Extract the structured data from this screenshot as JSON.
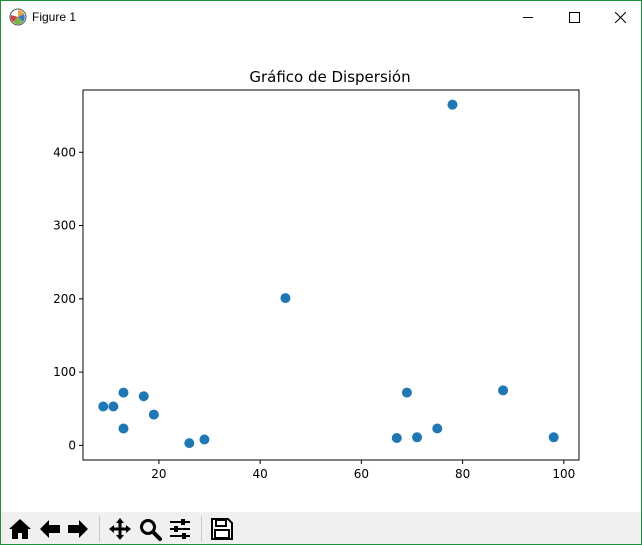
{
  "window": {
    "title": "Figure 1",
    "controls": [
      "minimize",
      "maximize",
      "close"
    ]
  },
  "toolbar": {
    "buttons": [
      {
        "name": "home-icon",
        "label": "Home"
      },
      {
        "name": "back-icon",
        "label": "Back"
      },
      {
        "name": "forward-icon",
        "label": "Forward"
      },
      {
        "name": "pan-icon",
        "label": "Pan"
      },
      {
        "name": "zoom-icon",
        "label": "Zoom"
      },
      {
        "name": "configure-icon",
        "label": "Configure subplots"
      },
      {
        "name": "save-icon",
        "label": "Save"
      }
    ]
  },
  "chart_data": {
    "type": "scatter",
    "title": "Gráfico de Dispersión",
    "xlabel": "",
    "ylabel": "",
    "xlim": [
      5,
      103
    ],
    "ylim": [
      -20,
      485
    ],
    "xticks": [
      20,
      40,
      60,
      80,
      100
    ],
    "yticks": [
      0,
      100,
      200,
      300,
      400
    ],
    "grid": false,
    "color": "#1f77b4",
    "points": [
      {
        "x": 9,
        "y": 53
      },
      {
        "x": 11,
        "y": 53
      },
      {
        "x": 13,
        "y": 72
      },
      {
        "x": 13,
        "y": 23
      },
      {
        "x": 17,
        "y": 67
      },
      {
        "x": 19,
        "y": 42
      },
      {
        "x": 26,
        "y": 3
      },
      {
        "x": 29,
        "y": 8
      },
      {
        "x": 45,
        "y": 201
      },
      {
        "x": 67,
        "y": 10
      },
      {
        "x": 69,
        "y": 72
      },
      {
        "x": 71,
        "y": 11
      },
      {
        "x": 75,
        "y": 23
      },
      {
        "x": 78,
        "y": 465
      },
      {
        "x": 88,
        "y": 75
      },
      {
        "x": 98,
        "y": 11
      }
    ]
  }
}
